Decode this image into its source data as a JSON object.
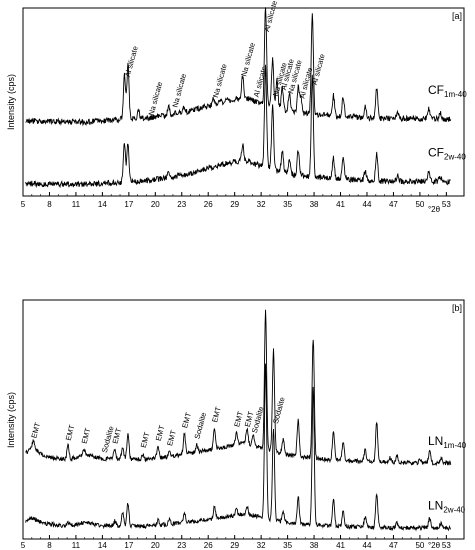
{
  "chart_data": [
    {
      "type": "line",
      "panel_label": "[a]",
      "ylabel": "Intensity (cps)",
      "xlabel": "°2θ",
      "xlim": [
        5,
        55
      ],
      "xticks": [
        5,
        8,
        11,
        14,
        17,
        20,
        23,
        26,
        29,
        32,
        35,
        38,
        41,
        44,
        47,
        50,
        53
      ],
      "y_ticks_shown": false,
      "grid": false,
      "series": [
        {
          "name": "CF1m-40",
          "label_main": "CF",
          "label_sub": "1m-40",
          "baseline": 12.0,
          "background": [
            [
              5,
              0
            ],
            [
              12,
              -0.2
            ],
            [
              16,
              0.2
            ],
            [
              20,
              0.6
            ],
            [
              24,
              1.6
            ],
            [
              27,
              2.8
            ],
            [
              29,
              3.5
            ],
            [
              30.5,
              3.6
            ],
            [
              32,
              2.8
            ],
            [
              34,
              1.9
            ],
            [
              36,
              1.3
            ],
            [
              40,
              0.8
            ],
            [
              45,
              0.4
            ],
            [
              50,
              0.3
            ],
            [
              53.5,
              0.3
            ]
          ],
          "peaks": [
            [
              16.5,
              7.0
            ],
            [
              16.9,
              8.5
            ],
            [
              18.1,
              1.2
            ],
            [
              21.5,
              1.4
            ],
            [
              23.2,
              0.6
            ],
            [
              26.6,
              1.0
            ],
            [
              29.9,
              3.6
            ],
            [
              32.5,
              15.5
            ],
            [
              33.3,
              7.5
            ],
            [
              33.8,
              4.5
            ],
            [
              34.4,
              3.5
            ],
            [
              35.2,
              2.8
            ],
            [
              36.2,
              4.0
            ],
            [
              36.5,
              2.5
            ],
            [
              37.8,
              16.0
            ],
            [
              40.2,
              3.2
            ],
            [
              41.3,
              3.2
            ],
            [
              43.8,
              1.8
            ],
            [
              45.1,
              4.8
            ],
            [
              47.5,
              1.0
            ],
            [
              51.0,
              1.6
            ],
            [
              52.3,
              1.0
            ]
          ]
        },
        {
          "name": "CF2w-40",
          "label_main": "CF",
          "label_sub": "2w-40",
          "baseline": 2.0,
          "background": [
            [
              5,
              0
            ],
            [
              12,
              -0.2
            ],
            [
              16,
              0.2
            ],
            [
              20,
              0.6
            ],
            [
              24,
              1.6
            ],
            [
              27,
              2.8
            ],
            [
              29,
              3.5
            ],
            [
              30.5,
              3.6
            ],
            [
              32,
              2.8
            ],
            [
              34,
              1.9
            ],
            [
              36,
              1.3
            ],
            [
              40,
              0.8
            ],
            [
              45,
              0.4
            ],
            [
              50,
              0.3
            ],
            [
              53.5,
              0.3
            ]
          ],
          "peaks": [
            [
              16.5,
              6.0
            ],
            [
              16.9,
              6.0
            ],
            [
              21.5,
              0.8
            ],
            [
              29.9,
              2.6
            ],
            [
              32.5,
              16.0
            ],
            [
              33.3,
              10.0
            ],
            [
              34.4,
              3.5
            ],
            [
              35.2,
              2.0
            ],
            [
              36.2,
              4.0
            ],
            [
              37.8,
              16.0
            ],
            [
              40.2,
              3.2
            ],
            [
              41.3,
              3.2
            ],
            [
              43.8,
              1.5
            ],
            [
              45.1,
              4.2
            ],
            [
              47.5,
              0.8
            ],
            [
              51.0,
              1.4
            ],
            [
              52.3,
              0.8
            ]
          ]
        }
      ],
      "annotations": [
        {
          "text": "Al silicate",
          "x": 16.8
        },
        {
          "text": "Na silicate",
          "x": 19.5
        },
        {
          "text": "Na silicate",
          "x": 22.2
        },
        {
          "text": "Na silicate",
          "x": 26.8
        },
        {
          "text": "Na silicate",
          "x": 30.0
        },
        {
          "text": "Al silicate",
          "x": 31.4
        },
        {
          "text": "Al silicate",
          "x": 32.6
        },
        {
          "text": "Na silicate",
          "x": 33.6
        },
        {
          "text": "Al silicate",
          "x": 34.5
        },
        {
          "text": "Na silicate",
          "x": 35.3
        },
        {
          "text": "Al silicate",
          "x": 36.6
        },
        {
          "text": "Al silicate",
          "x": 38.0
        }
      ]
    },
    {
      "type": "line",
      "panel_label": "[b]",
      "ylabel": "Intensity (cps)",
      "xlabel": "°2θ",
      "xlim": [
        5,
        55
      ],
      "xticks": [
        5,
        8,
        11,
        14,
        17,
        20,
        23,
        26,
        29,
        32,
        35,
        38,
        41,
        44,
        47,
        50,
        53
      ],
      "y_ticks_shown": false,
      "grid": false,
      "series": [
        {
          "name": "LN1m-40",
          "label_main": "LN",
          "label_sub": "1m-40",
          "baseline": 16.0,
          "background": [
            [
              5,
              2.0
            ],
            [
              6,
              4.0
            ],
            [
              7.5,
              2.0
            ],
            [
              10,
              1.2
            ],
            [
              12,
              2.4
            ],
            [
              14,
              1.5
            ],
            [
              16,
              1.4
            ],
            [
              19,
              1.3
            ],
            [
              22,
              2.0
            ],
            [
              25,
              3.0
            ],
            [
              28,
              4.0
            ],
            [
              30,
              4.8
            ],
            [
              31.5,
              4.2
            ],
            [
              33,
              3.2
            ],
            [
              36,
              2.0
            ],
            [
              40,
              1.2
            ],
            [
              45,
              0.8
            ],
            [
              50,
              0.5
            ],
            [
              53.5,
              0.5
            ]
          ],
          "peaks": [
            [
              6.2,
              1.6
            ],
            [
              10.1,
              3.2
            ],
            [
              11.9,
              1.2
            ],
            [
              15.4,
              2.0
            ],
            [
              16.3,
              2.5
            ],
            [
              16.9,
              5.5
            ],
            [
              18.6,
              1.2
            ],
            [
              20.3,
              2.5
            ],
            [
              21.6,
              1.6
            ],
            [
              23.3,
              4.5
            ],
            [
              24.7,
              1.6
            ],
            [
              26.7,
              4.8
            ],
            [
              29.2,
              2.6
            ],
            [
              30.4,
              3.2
            ],
            [
              31.1,
              2.2
            ],
            [
              32.5,
              30.0
            ],
            [
              33.4,
              22.0
            ],
            [
              34.5,
              3.0
            ],
            [
              36.2,
              8.0
            ],
            [
              37.9,
              26.0
            ],
            [
              40.2,
              6.5
            ],
            [
              41.3,
              3.8
            ],
            [
              43.8,
              2.5
            ],
            [
              45.1,
              8.5
            ],
            [
              46.6,
              1.0
            ],
            [
              47.4,
              1.4
            ],
            [
              50.0,
              1.0
            ],
            [
              51.1,
              2.6
            ],
            [
              52.4,
              1.2
            ]
          ]
        },
        {
          "name": "LN2w-40",
          "label_main": "LN",
          "label_sub": "2w-40",
          "baseline": 2.0,
          "background": [
            [
              5,
              1.2
            ],
            [
              6,
              2.6
            ],
            [
              7.5,
              1.4
            ],
            [
              10,
              0.8
            ],
            [
              12,
              1.6
            ],
            [
              14,
              0.9
            ],
            [
              16,
              0.9
            ],
            [
              19,
              0.8
            ],
            [
              22,
              1.3
            ],
            [
              25,
              2.0
            ],
            [
              28,
              2.8
            ],
            [
              30,
              3.4
            ],
            [
              31.5,
              3.0
            ],
            [
              33,
              2.2
            ],
            [
              36,
              1.3
            ],
            [
              40,
              0.8
            ],
            [
              45,
              0.5
            ],
            [
              50,
              0.4
            ],
            [
              53.5,
              0.4
            ]
          ],
          "peaks": [
            [
              10.1,
              1.0
            ],
            [
              15.4,
              1.0
            ],
            [
              16.3,
              3.0
            ],
            [
              16.9,
              5.0
            ],
            [
              20.3,
              1.0
            ],
            [
              21.6,
              1.0
            ],
            [
              23.3,
              2.0
            ],
            [
              26.7,
              2.5
            ],
            [
              29.2,
              1.2
            ],
            [
              30.4,
              2.0
            ],
            [
              32.5,
              34.0
            ],
            [
              33.4,
              20.0
            ],
            [
              34.5,
              2.2
            ],
            [
              36.2,
              6.0
            ],
            [
              37.9,
              30.0
            ],
            [
              40.2,
              6.0
            ],
            [
              41.3,
              3.5
            ],
            [
              43.8,
              2.2
            ],
            [
              45.1,
              7.5
            ],
            [
              47.4,
              1.0
            ],
            [
              51.1,
              2.2
            ],
            [
              52.4,
              1.0
            ]
          ]
        }
      ],
      "annotations": [
        {
          "text": "EMT",
          "x": 6.2
        },
        {
          "text": "EMT",
          "x": 10.1
        },
        {
          "text": "EMT",
          "x": 11.9
        },
        {
          "text": "Sodalite",
          "x": 14.2
        },
        {
          "text": "EMT",
          "x": 15.4
        },
        {
          "text": "EMT",
          "x": 18.6
        },
        {
          "text": "EMT",
          "x": 20.3
        },
        {
          "text": "EMT",
          "x": 21.6
        },
        {
          "text": "EMT",
          "x": 23.3
        },
        {
          "text": "Sodalite",
          "x": 24.7
        },
        {
          "text": "EMT",
          "x": 26.7
        },
        {
          "text": "EMT",
          "x": 29.2
        },
        {
          "text": "EMT",
          "x": 30.4
        },
        {
          "text": "Sodalite",
          "x": 31.2
        },
        {
          "text": "Sodalite",
          "x": 33.6
        }
      ]
    }
  ]
}
